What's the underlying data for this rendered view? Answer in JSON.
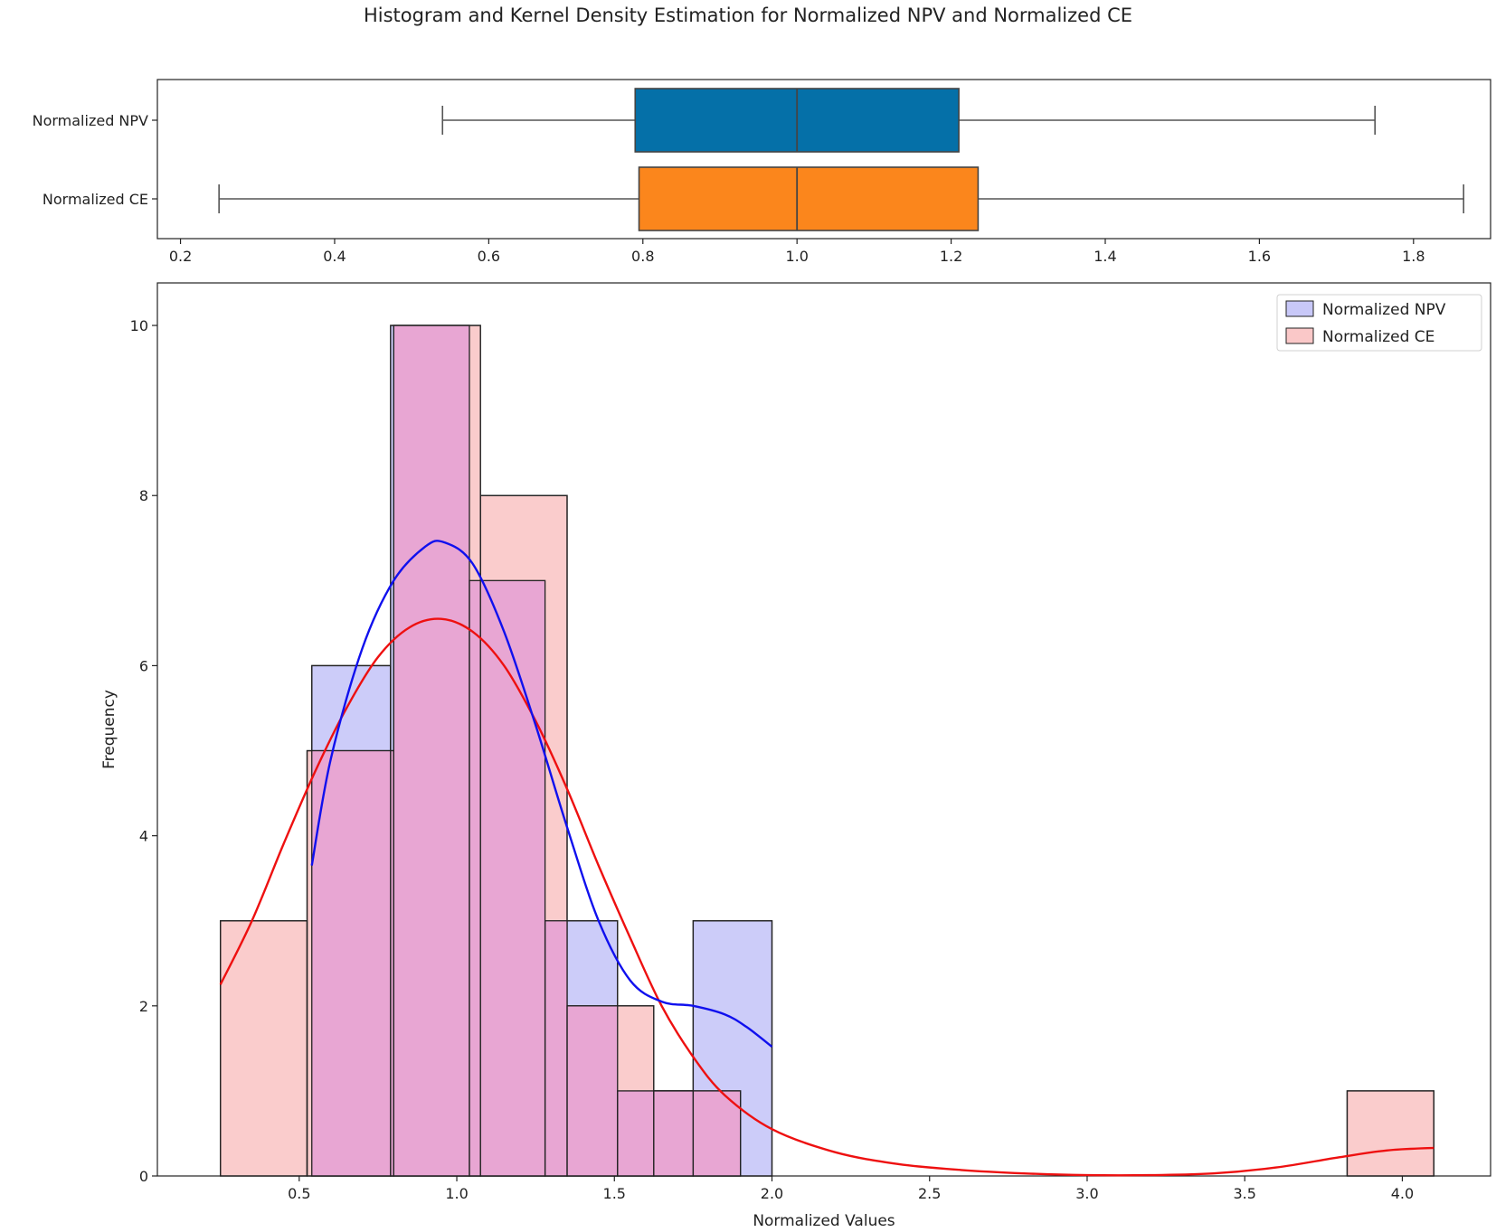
{
  "title": "Histogram and Kernel Density Estimation for Normalized NPV and Normalized CE",
  "colors": {
    "npv_box": "#0570a8",
    "ce_box": "#fb861c",
    "npv_hist": "#c8c8f8",
    "ce_hist": "#fac8c8",
    "overlap_hist": "#e8a6d3",
    "npv_kde": "#1010ee",
    "ce_kde": "#ee1010"
  },
  "chart_data": [
    {
      "type": "box",
      "categories": [
        "Normalized NPV",
        "Normalized CE"
      ],
      "xlim": [
        0.17,
        1.9
      ],
      "xticks": [
        "0.2",
        "0.4",
        "0.6",
        "0.8",
        "1.0",
        "1.2",
        "1.4",
        "1.6",
        "1.8"
      ],
      "series": [
        {
          "name": "Normalized NPV",
          "whisker_low": 0.54,
          "q1": 0.79,
          "median": 1.0,
          "q3": 1.21,
          "whisker_high": 1.75
        },
        {
          "name": "Normalized CE",
          "whisker_low": 0.25,
          "q1": 0.795,
          "median": 1.0,
          "q3": 1.235,
          "whisker_high": 1.865
        }
      ]
    },
    {
      "type": "histogram",
      "xlabel": "Normalized Values",
      "ylabel": "Frequency",
      "xlim": [
        0.05,
        4.28
      ],
      "ylim": [
        0,
        10.5
      ],
      "xticks": [
        "0.5",
        "1.0",
        "1.5",
        "2.0",
        "2.5",
        "3.0",
        "3.5",
        "4.0"
      ],
      "yticks": [
        "0",
        "2",
        "4",
        "6",
        "8",
        "10"
      ],
      "legend": {
        "position": "top-right",
        "entries": [
          "Normalized NPV",
          "Normalized CE"
        ]
      },
      "series": [
        {
          "name": "Normalized NPV",
          "bins": [
            {
              "x0": 0.54,
              "x1": 0.79,
              "count": 6
            },
            {
              "x0": 0.79,
              "x1": 1.04,
              "count": 10
            },
            {
              "x0": 1.04,
              "x1": 1.28,
              "count": 7
            },
            {
              "x0": 1.28,
              "x1": 1.51,
              "count": 3
            },
            {
              "x0": 1.51,
              "x1": 1.75,
              "count": 1
            },
            {
              "x0": 1.75,
              "x1": 2.0,
              "count": 3
            }
          ],
          "kde": [
            [
              0.54,
              3.65
            ],
            [
              0.6,
              4.9
            ],
            [
              0.7,
              6.2
            ],
            [
              0.8,
              7.0
            ],
            [
              0.9,
              7.4
            ],
            [
              0.96,
              7.45
            ],
            [
              1.05,
              7.2
            ],
            [
              1.15,
              6.4
            ],
            [
              1.25,
              5.3
            ],
            [
              1.35,
              4.1
            ],
            [
              1.45,
              3.0
            ],
            [
              1.55,
              2.3
            ],
            [
              1.65,
              2.05
            ],
            [
              1.75,
              2.0
            ],
            [
              1.85,
              1.9
            ],
            [
              1.92,
              1.75
            ],
            [
              2.0,
              1.52
            ]
          ]
        },
        {
          "name": "Normalized CE",
          "bins": [
            {
              "x0": 0.25,
              "x1": 0.525,
              "count": 3
            },
            {
              "x0": 0.525,
              "x1": 0.8,
              "count": 5
            },
            {
              "x0": 0.8,
              "x1": 1.075,
              "count": 10
            },
            {
              "x0": 1.075,
              "x1": 1.35,
              "count": 8
            },
            {
              "x0": 1.35,
              "x1": 1.625,
              "count": 2
            },
            {
              "x0": 1.625,
              "x1": 1.9,
              "count": 1
            },
            {
              "x0": 3.825,
              "x1": 4.1,
              "count": 1
            }
          ],
          "kde": [
            [
              0.25,
              2.25
            ],
            [
              0.35,
              3.0
            ],
            [
              0.45,
              3.9
            ],
            [
              0.55,
              4.75
            ],
            [
              0.65,
              5.5
            ],
            [
              0.75,
              6.1
            ],
            [
              0.85,
              6.45
            ],
            [
              0.95,
              6.55
            ],
            [
              1.05,
              6.4
            ],
            [
              1.15,
              6.0
            ],
            [
              1.25,
              5.35
            ],
            [
              1.35,
              4.55
            ],
            [
              1.45,
              3.65
            ],
            [
              1.55,
              2.8
            ],
            [
              1.65,
              2.0
            ],
            [
              1.75,
              1.4
            ],
            [
              1.85,
              0.95
            ],
            [
              2.0,
              0.55
            ],
            [
              2.2,
              0.28
            ],
            [
              2.4,
              0.14
            ],
            [
              2.6,
              0.07
            ],
            [
              2.8,
              0.03
            ],
            [
              3.0,
              0.01
            ],
            [
              3.2,
              0.01
            ],
            [
              3.4,
              0.03
            ],
            [
              3.6,
              0.1
            ],
            [
              3.8,
              0.22
            ],
            [
              3.95,
              0.3
            ],
            [
              4.1,
              0.33
            ]
          ]
        }
      ]
    }
  ]
}
